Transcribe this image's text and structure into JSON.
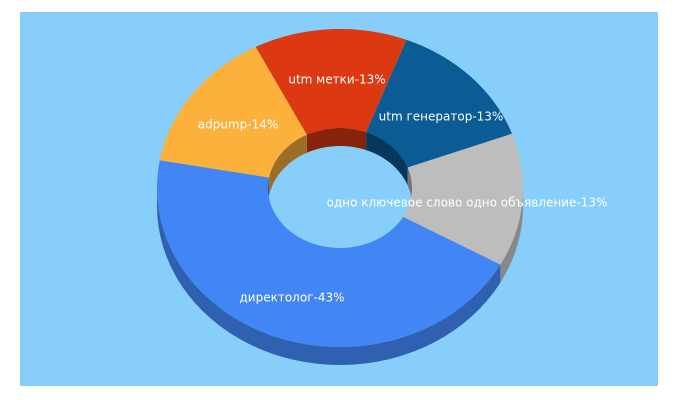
{
  "chart_data": {
    "type": "pie",
    "style": "donut-3d",
    "background_color": "#87CEFA",
    "slices": [
      {
        "label": "utm метки-13%",
        "value": 13,
        "color": "#DC3912"
      },
      {
        "label": "utm генератор-13%",
        "value": 13,
        "color": "#0B5B94"
      },
      {
        "label": "одно ключевое слово одно объявление-13%",
        "value": 13,
        "color": "#BDBDBD"
      },
      {
        "label": "директолог-43%",
        "value": 43,
        "color": "#4285F4"
      },
      {
        "label": "adpump-14%",
        "value": 14,
        "color": "#FBB13C"
      }
    ]
  }
}
